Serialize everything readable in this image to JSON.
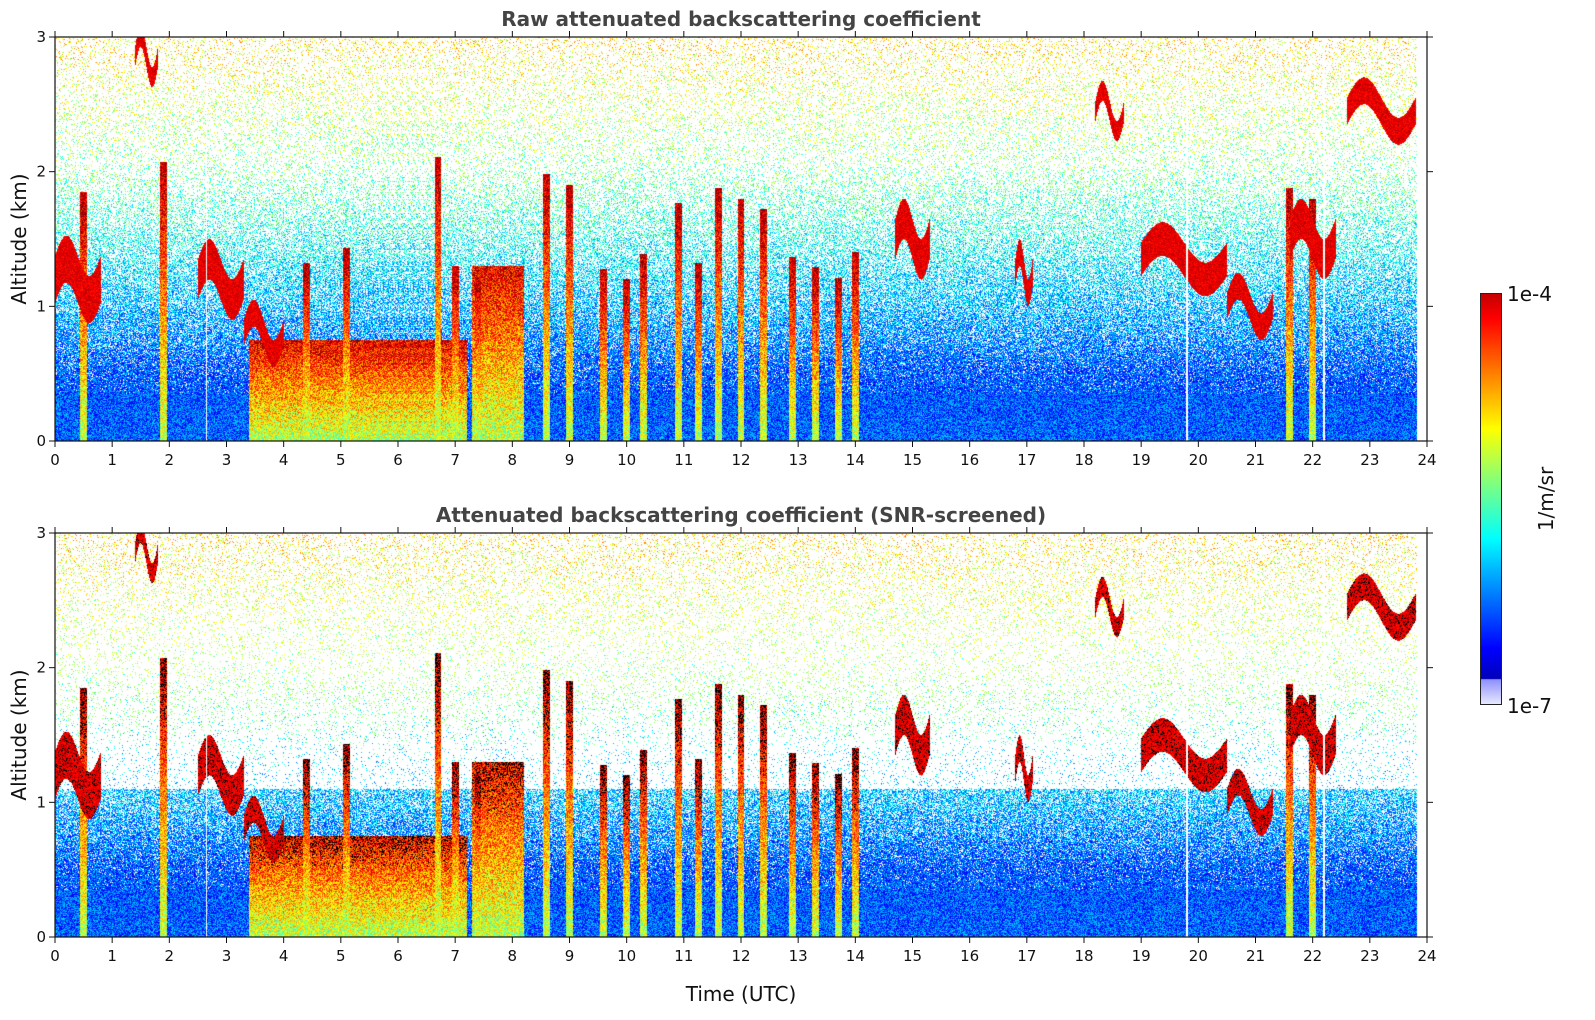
{
  "chart_data": [
    {
      "type": "heatmap",
      "title": "Raw attenuated backscattering coefficient",
      "xlabel": "",
      "ylabel": "Altitude (km)",
      "x_ticks": [
        "0",
        "1",
        "2",
        "3",
        "4",
        "5",
        "6",
        "7",
        "8",
        "9",
        "10",
        "11",
        "12",
        "13",
        "14",
        "15",
        "16",
        "17",
        "18",
        "19",
        "20",
        "21",
        "22",
        "23",
        "24"
      ],
      "y_ticks": [
        "0",
        "1",
        "2",
        "3"
      ],
      "xlim": [
        0,
        24
      ],
      "ylim": [
        0,
        3
      ],
      "grid": false,
      "screened": false,
      "features": {
        "boundary_layer": [
          {
            "t0": 3.4,
            "t1": 7.2,
            "top_km": 0.75,
            "level": 0.95
          },
          {
            "t0": 7.3,
            "t1": 8.2,
            "top_km": 1.3,
            "level": 0.8
          }
        ],
        "cloud_layers": [
          {
            "t0": 0.0,
            "t1": 0.8,
            "alt_km": 1.2,
            "thickness_km": 0.35
          },
          {
            "t0": 1.4,
            "t1": 1.8,
            "alt_km": 2.85,
            "thickness_km": 0.15
          },
          {
            "t0": 2.5,
            "t1": 3.3,
            "alt_km": 1.2,
            "thickness_km": 0.3
          },
          {
            "t0": 3.3,
            "t1": 4.0,
            "alt_km": 0.8,
            "thickness_km": 0.2
          },
          {
            "t0": 14.7,
            "t1": 15.3,
            "alt_km": 1.5,
            "thickness_km": 0.3
          },
          {
            "t0": 16.8,
            "t1": 17.1,
            "alt_km": 1.25,
            "thickness_km": 0.2
          },
          {
            "t0": 18.2,
            "t1": 18.7,
            "alt_km": 2.45,
            "thickness_km": 0.15
          },
          {
            "t0": 19.0,
            "t1": 20.5,
            "alt_km": 1.35,
            "thickness_km": 0.25
          },
          {
            "t0": 20.5,
            "t1": 21.3,
            "alt_km": 1.0,
            "thickness_km": 0.2
          },
          {
            "t0": 21.6,
            "t1": 22.4,
            "alt_km": 1.5,
            "thickness_km": 0.3
          },
          {
            "t0": 22.6,
            "t1": 23.8,
            "alt_km": 2.45,
            "thickness_km": 0.2
          }
        ],
        "precip_columns": [
          0.5,
          1.9,
          4.4,
          5.1,
          6.7,
          7.0,
          7.4,
          8.6,
          9.0,
          9.6,
          10.0,
          10.3,
          10.9,
          11.25,
          11.6,
          12.0,
          12.4,
          12.9,
          13.3,
          13.7,
          14.0,
          21.6,
          22.0
        ],
        "retrieval_gaps": [
          2.65,
          19.8,
          22.2
        ]
      }
    },
    {
      "type": "heatmap",
      "title": "Attenuated backscattering coefficient (SNR-screened)",
      "xlabel": "Time (UTC)",
      "ylabel": "Altitude (km)",
      "x_ticks": [
        "0",
        "1",
        "2",
        "3",
        "4",
        "5",
        "6",
        "7",
        "8",
        "9",
        "10",
        "11",
        "12",
        "13",
        "14",
        "15",
        "16",
        "17",
        "18",
        "19",
        "20",
        "21",
        "22",
        "23",
        "24"
      ],
      "y_ticks": [
        "0",
        "1",
        "2",
        "3"
      ],
      "xlim": [
        0,
        24
      ],
      "ylim": [
        0,
        3
      ],
      "grid": false,
      "screened": true,
      "features": {
        "note": "same scene as the raw panel with low-SNR pixels removed (white)"
      }
    }
  ],
  "colorbar": {
    "label": "1/m/sr",
    "max_label": "1e-4",
    "min_label": "1e-7",
    "colormap": "jet",
    "scale": "log",
    "range": [
      1e-07,
      0.0001
    ]
  },
  "colors": {
    "background": "#ffffff",
    "title": "#444444",
    "axis": "#111111"
  }
}
